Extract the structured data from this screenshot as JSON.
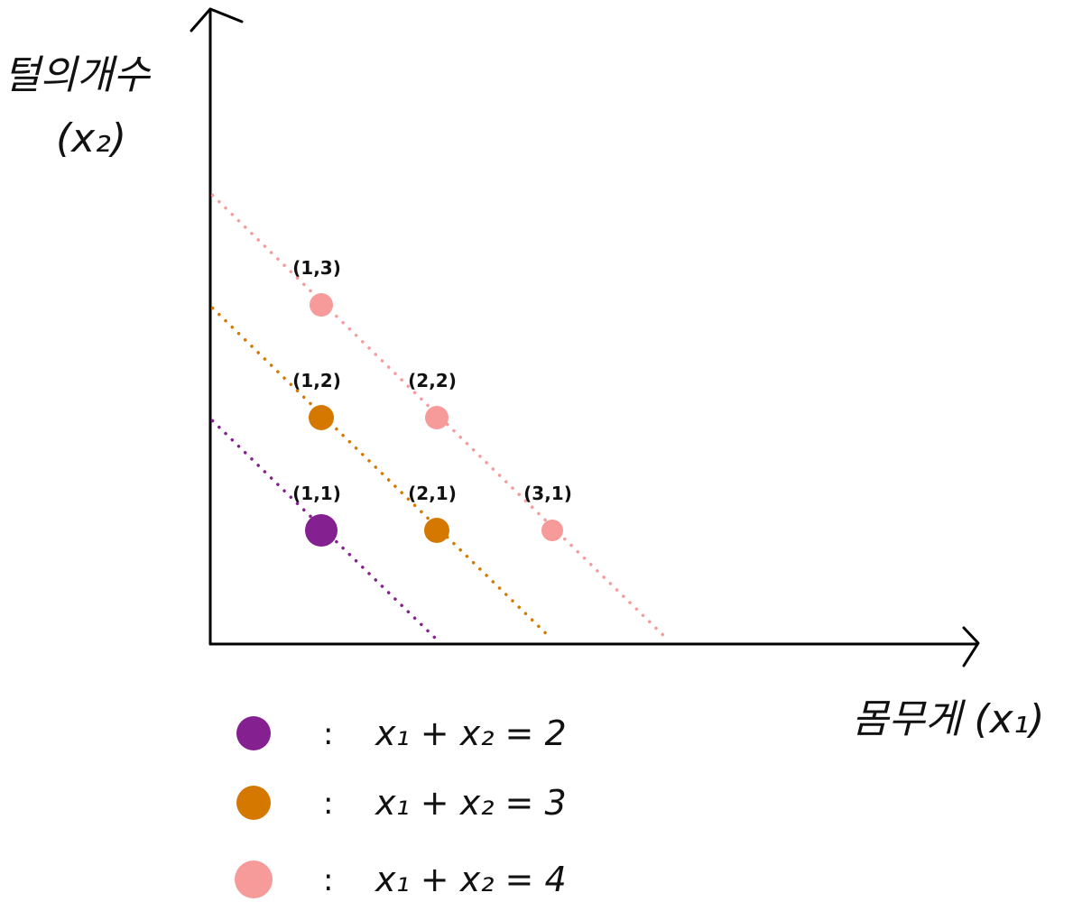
{
  "chart_data": {
    "type": "scatter",
    "title": "",
    "xlabel": "몸무게 (x₁)",
    "ylabel_line1": "털의개수",
    "ylabel_line2": "(x₂)",
    "xlim": [
      0,
      5.5
    ],
    "ylim": [
      0,
      4
    ],
    "grid": false,
    "legend_position": "bottom-left",
    "series": [
      {
        "name": "x₁ + x₂ = 2",
        "color": "#852090",
        "sum": 2,
        "points": [
          {
            "x": 1,
            "y": 1,
            "label": "(1,1)"
          }
        ]
      },
      {
        "name": "x₁ + x₂ = 3",
        "color": "#D47800",
        "sum": 3,
        "points": [
          {
            "x": 1,
            "y": 2,
            "label": "(1,2)"
          },
          {
            "x": 2,
            "y": 1,
            "label": "(2,1)"
          }
        ]
      },
      {
        "name": "x₁ + x₂ = 4",
        "color": "#F79A9A",
        "sum": 4,
        "points": [
          {
            "x": 1,
            "y": 3,
            "label": "(1,3)"
          },
          {
            "x": 2,
            "y": 2,
            "label": "(2,2)"
          },
          {
            "x": 3,
            "y": 1,
            "label": "(3,1)"
          }
        ]
      }
    ],
    "legend": [
      {
        "color": "#852090",
        "colon": ":",
        "text": "x₁ + x₂ = 2"
      },
      {
        "color": "#D47800",
        "colon": ":",
        "text": "x₁ + x₂ = 3"
      },
      {
        "color": "#F79A9A",
        "colon": ":",
        "text": "x₁ + x₂ = 4"
      }
    ]
  }
}
